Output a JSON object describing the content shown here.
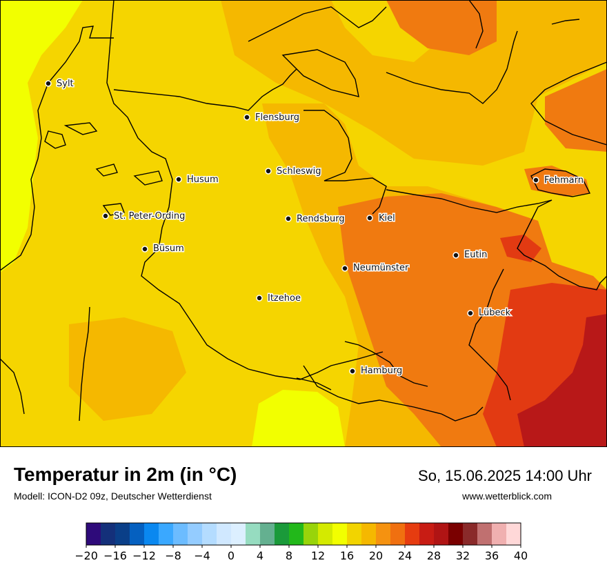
{
  "map": {
    "colors": {
      "background_warm": "#f7d400",
      "cooler_west": "#f2ff00",
      "warm_orange": "#f5b800",
      "hot_orange": "#f07a10",
      "very_hot": "#e03010",
      "extreme": "#b81818",
      "coast_line": "#000000"
    },
    "cities": [
      {
        "name": "Sylt"
      },
      {
        "name": "Flensburg"
      },
      {
        "name": "Husum"
      },
      {
        "name": "Schleswig"
      },
      {
        "name": "St. Peter-Ording"
      },
      {
        "name": "Rendsburg"
      },
      {
        "name": "Kiel"
      },
      {
        "name": "Fehmarn"
      },
      {
        "name": "Büsum"
      },
      {
        "name": "Eutin"
      },
      {
        "name": "Neumünster"
      },
      {
        "name": "Itzehoe"
      },
      {
        "name": "Lübeck"
      },
      {
        "name": "Hamburg"
      }
    ]
  },
  "header": {
    "title": "Temperatur in 2m (in °C)",
    "subtitle": "Modell: ICON-D2 09z, Deutscher Wetterdienst",
    "datetime": "So, 15.06.2025 14:00 Uhr",
    "website": "www.wetterblick.com"
  },
  "legend": {
    "min": -20,
    "max": 40,
    "tick_labels": [
      "−20",
      "−16",
      "−12",
      "−8",
      "−4",
      "0",
      "4",
      "8",
      "12",
      "16",
      "20",
      "24",
      "28",
      "32",
      "36",
      "40"
    ],
    "colors": [
      "#2e0a7a",
      "#14307a",
      "#0a3f88",
      "#0560c0",
      "#0a88f0",
      "#3aa8ff",
      "#6cbcff",
      "#94ccff",
      "#b4dcff",
      "#d0e8ff",
      "#dcefff",
      "#96dcc0",
      "#64b090",
      "#1a9a3a",
      "#22b81a",
      "#98d40a",
      "#d4ea00",
      "#f2ff00",
      "#f2d400",
      "#f5b800",
      "#f59210",
      "#f07010",
      "#e63c10",
      "#c81c14",
      "#b01414",
      "#7a0000",
      "#8a2a2a",
      "#c07070",
      "#f0b0b0",
      "#ffd8d8"
    ]
  }
}
